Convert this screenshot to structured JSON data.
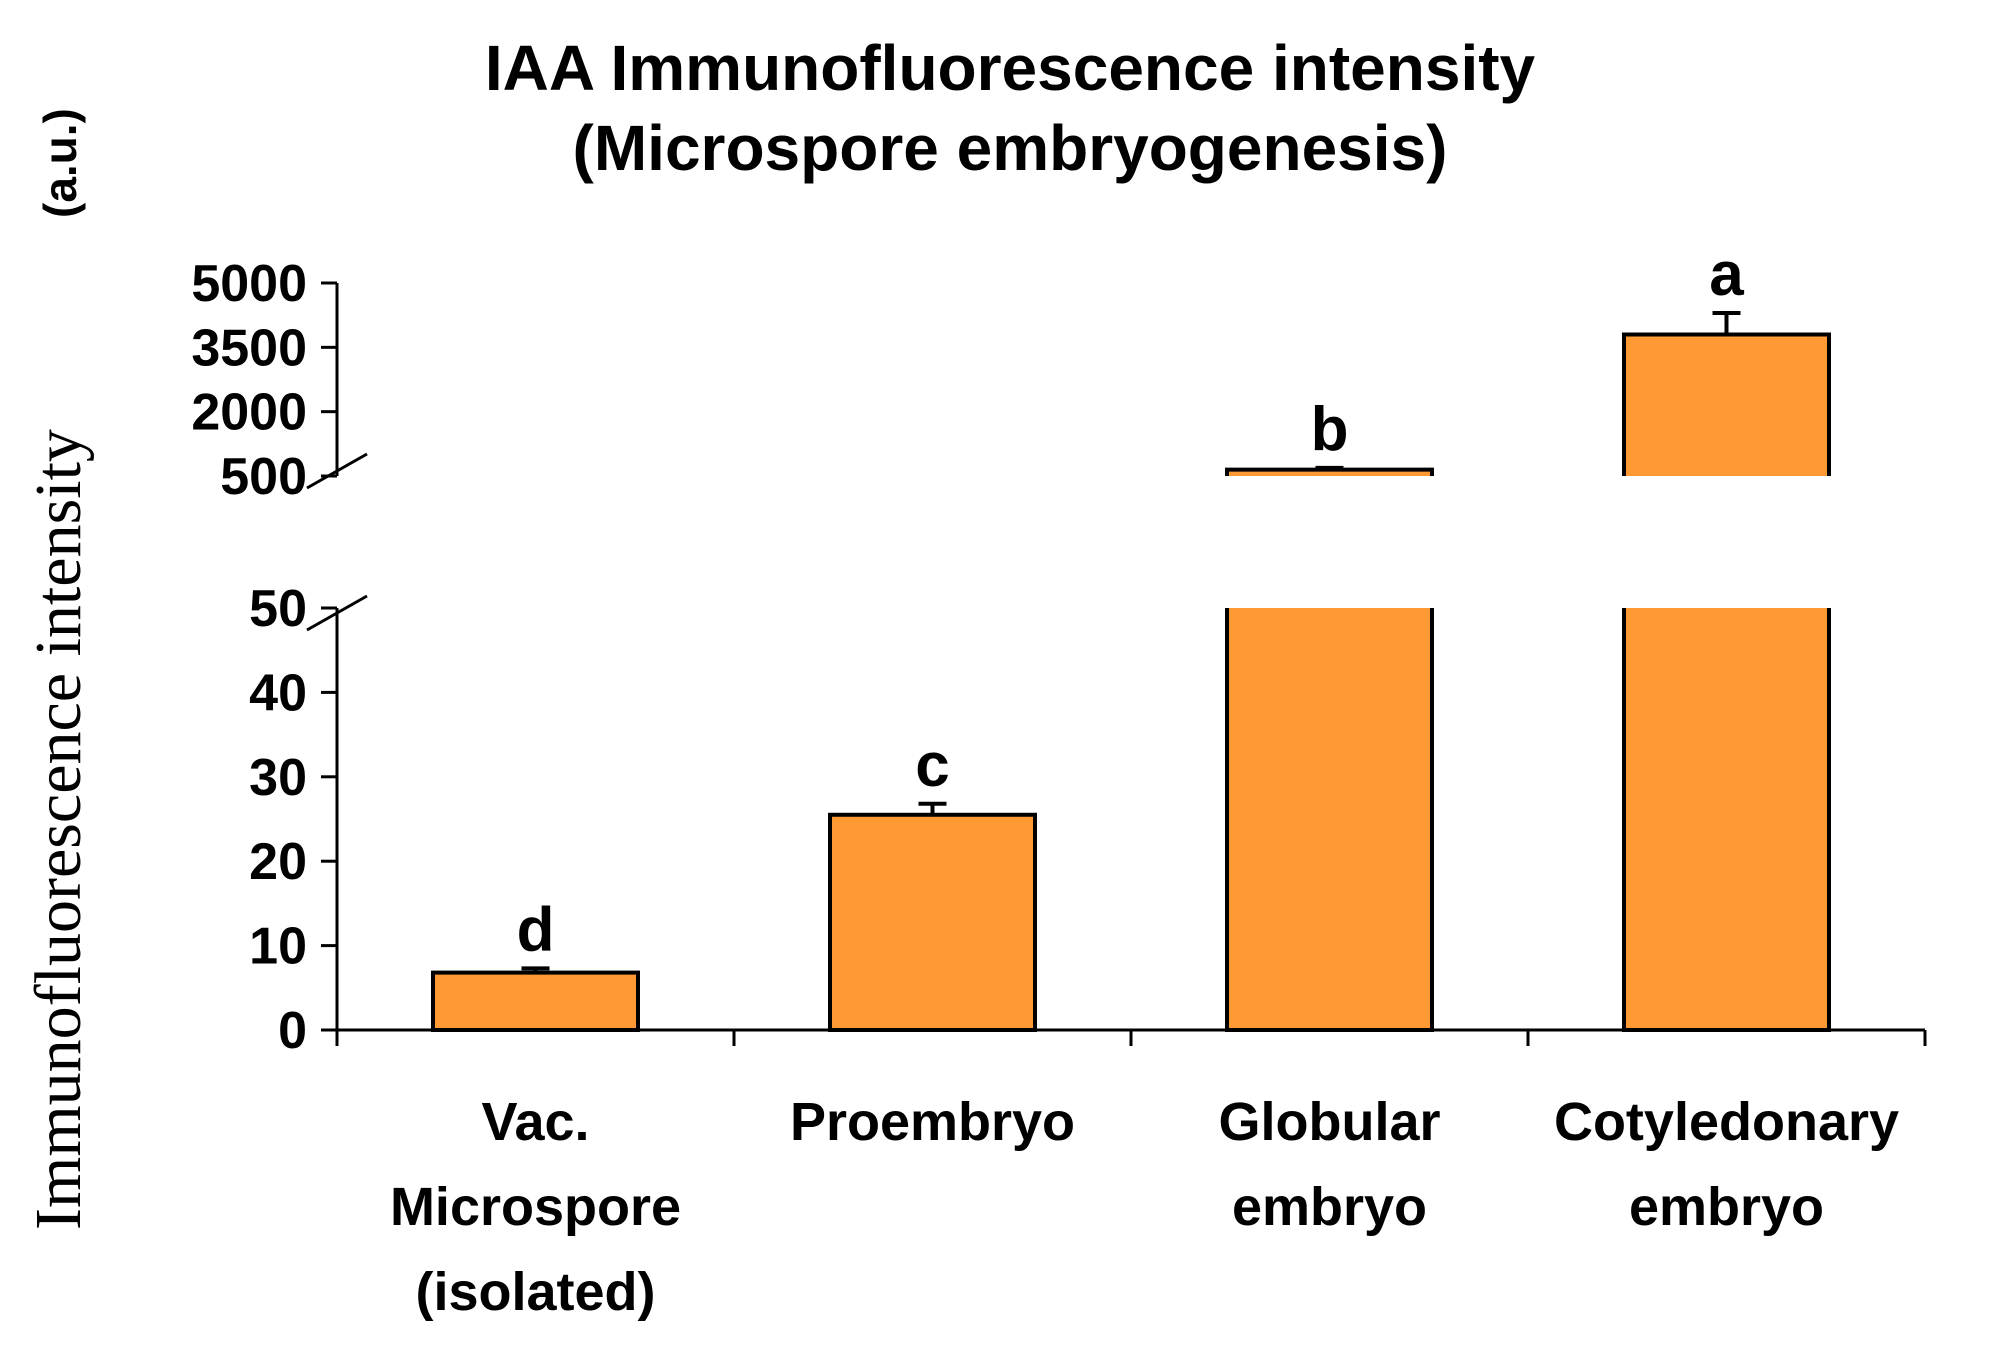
{
  "chart_data": {
    "type": "bar",
    "title": "IAA Immunofluorescence intensity",
    "subtitle": "(Microspore embryogenesis)",
    "xlabel": "",
    "ylabel": "Immunofluorescence intensity",
    "ylabel_unit": "(a.u.)",
    "categories": [
      [
        "Vac.",
        "Microspore",
        "(isolated)"
      ],
      [
        "Proembryo"
      ],
      [
        "Globular",
        "embryo"
      ],
      [
        "Cotyledonary",
        "embryo"
      ]
    ],
    "values": [
      6.8,
      25.5,
      650,
      3800
    ],
    "errors": [
      0.5,
      1.3,
      40,
      500
    ],
    "significance_letters": [
      "d",
      "c",
      "b",
      "a"
    ],
    "axis_break": true,
    "lower_segment": {
      "ylim": [
        0,
        50
      ],
      "ticks": [
        0,
        10,
        20,
        30,
        40,
        50
      ]
    },
    "upper_segment": {
      "ylim": [
        500,
        5000
      ],
      "ticks": [
        500,
        2000,
        3500,
        5000
      ]
    },
    "bar_color": "#FF9933",
    "grid": false
  }
}
